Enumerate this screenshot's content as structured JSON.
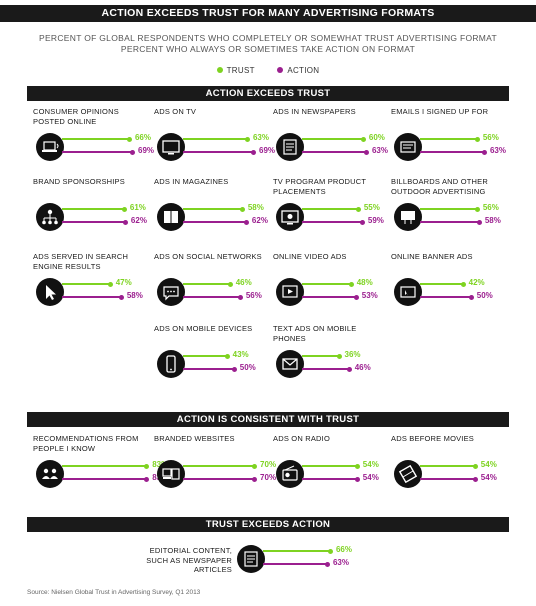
{
  "title": "ACTION EXCEEDS TRUST FOR MANY ADVERTISING FORMATS",
  "subtitle_1": "PERCENT OF GLOBAL RESPONDENTS WHO COMPLETELY OR SOMEWHAT TRUST ADVERTISING FORMAT",
  "subtitle_2": "PERCENT WHO ALWAYS OR SOMETIMES TAKE ACTION ON FORMAT",
  "legend": {
    "trust": "TRUST",
    "action": "ACTION"
  },
  "colors": {
    "trust": "#7ed321",
    "action": "#9b1f8f",
    "header": "#1a1a1a"
  },
  "source": "Source: Nielsen Global Trust in Advertising Survey, Q1 2013",
  "chart_data": {
    "type": "bar",
    "series": [
      {
        "name": "TRUST"
      },
      {
        "name": "ACTION"
      }
    ],
    "xlim": [
      0,
      100
    ],
    "sections": [
      {
        "title": "ACTION EXCEEDS TRUST",
        "items": [
          {
            "label": "CONSUMER OPINIONS POSTED ONLINE",
            "trust": 66,
            "action": 69,
            "icon": "laptop-icon"
          },
          {
            "label": "ADS ON TV",
            "trust": 63,
            "action": 69,
            "icon": "tv-icon"
          },
          {
            "label": "ADS IN NEWSPAPERS",
            "trust": 60,
            "action": 63,
            "icon": "newspaper-icon"
          },
          {
            "label": "EMAILS I SIGNED UP FOR",
            "trust": 56,
            "action": 63,
            "icon": "email-icon"
          },
          {
            "label": "BRAND SPONSORSHIPS",
            "trust": 61,
            "action": 62,
            "icon": "network-icon"
          },
          {
            "label": "ADS IN MAGAZINES",
            "trust": 58,
            "action": 62,
            "icon": "magazine-icon"
          },
          {
            "label": "TV PROGRAM PRODUCT PLACEMENTS",
            "trust": 55,
            "action": 59,
            "icon": "tv-product-icon"
          },
          {
            "label": "BILLBOARDS AND OTHER OUTDOOR ADVERTISING",
            "trust": 56,
            "action": 58,
            "icon": "billboard-icon"
          },
          {
            "label": "ADS SERVED IN SEARCH ENGINE RESULTS",
            "trust": 47,
            "action": 58,
            "icon": "cursor-icon"
          },
          {
            "label": "ADS ON SOCIAL NETWORKS",
            "trust": 46,
            "action": 56,
            "icon": "chat-icon"
          },
          {
            "label": "ONLINE VIDEO ADS",
            "trust": 48,
            "action": 53,
            "icon": "video-icon"
          },
          {
            "label": "ONLINE BANNER ADS",
            "trust": 42,
            "action": 50,
            "icon": "banner-icon"
          },
          {
            "label": "ADS ON MOBILE DEVICES",
            "trust": 43,
            "action": 50,
            "icon": "mobile-icon"
          },
          {
            "label": "TEXT ADS ON MOBILE PHONES",
            "trust": 36,
            "action": 46,
            "icon": "envelope-icon"
          }
        ]
      },
      {
        "title": "ACTION IS CONSISTENT WITH TRUST",
        "items": [
          {
            "label": "RECOMMENDATIONS FROM PEOPLE I KNOW",
            "trust": 83,
            "action": 83,
            "icon": "people-icon"
          },
          {
            "label": "BRANDED WEBSITES",
            "trust": 70,
            "action": 70,
            "icon": "computer-icon"
          },
          {
            "label": "ADS ON RADIO",
            "trust": 54,
            "action": 54,
            "icon": "radio-icon"
          },
          {
            "label": "ADS BEFORE MOVIES",
            "trust": 54,
            "action": 54,
            "icon": "film-icon"
          }
        ]
      },
      {
        "title": "TRUST EXCEEDS ACTION",
        "items": [
          {
            "label": "EDITORIAL CONTENT, SUCH AS NEWSPAPER ARTICLES",
            "trust": 66,
            "action": 63,
            "icon": "article-icon"
          }
        ]
      }
    ]
  }
}
